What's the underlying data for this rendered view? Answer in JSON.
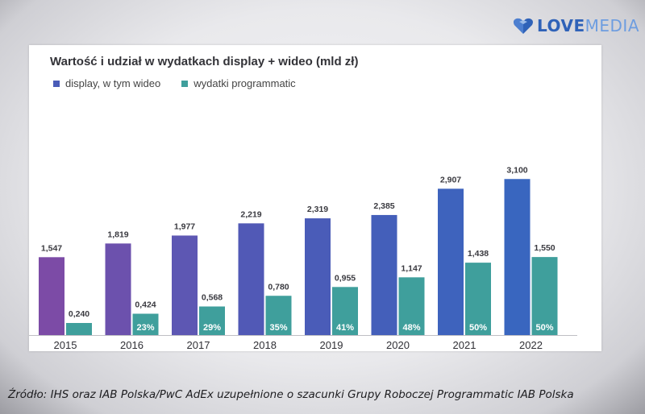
{
  "brand": {
    "logo_word_bold": "LOVE",
    "logo_word_light": "MEDIA",
    "logo_color": "#2f62b8"
  },
  "chart_data": {
    "type": "bar",
    "title": "Wartość i udział w wydatkach display + wideo (mld zł)",
    "categories": [
      "2015",
      "2016",
      "2017",
      "2018",
      "2019",
      "2020",
      "2021",
      "2022"
    ],
    "series": [
      {
        "name": "display, w tym wideo",
        "values": [
          1.547,
          1.819,
          1.977,
          2.219,
          2.319,
          2.385,
          2.907,
          3.1
        ],
        "labels": [
          "1,547",
          "1,819",
          "1,977",
          "2,219",
          "2,319",
          "2,385",
          "2,907",
          "3,100"
        ],
        "colors": [
          "#7c4ba6",
          "#6c51ad",
          "#5d57b3",
          "#5159b6",
          "#4a5cb8",
          "#445fba",
          "#3e63bd",
          "#3966bf"
        ]
      },
      {
        "name": "wydatki programmatic",
        "values": [
          0.24,
          0.424,
          0.568,
          0.78,
          0.955,
          1.147,
          1.438,
          1.55
        ],
        "labels": [
          "0,240",
          "0,424",
          "0,568",
          "0,780",
          "0,955",
          "1,147",
          "1,438",
          "1,550"
        ],
        "share": [
          "",
          "23%",
          "29%",
          "35%",
          "41%",
          "48%",
          "50%",
          "50%"
        ],
        "color": "#3f9f9c"
      }
    ],
    "ylim": [
      0,
      3.25
    ],
    "grid": false,
    "legend_position": "top-left"
  },
  "source_note": "Źródło: IHS oraz IAB Polska/PwC AdEx uzupełnione o szacunki Grupy Roboczej Programmatic IAB Polska"
}
